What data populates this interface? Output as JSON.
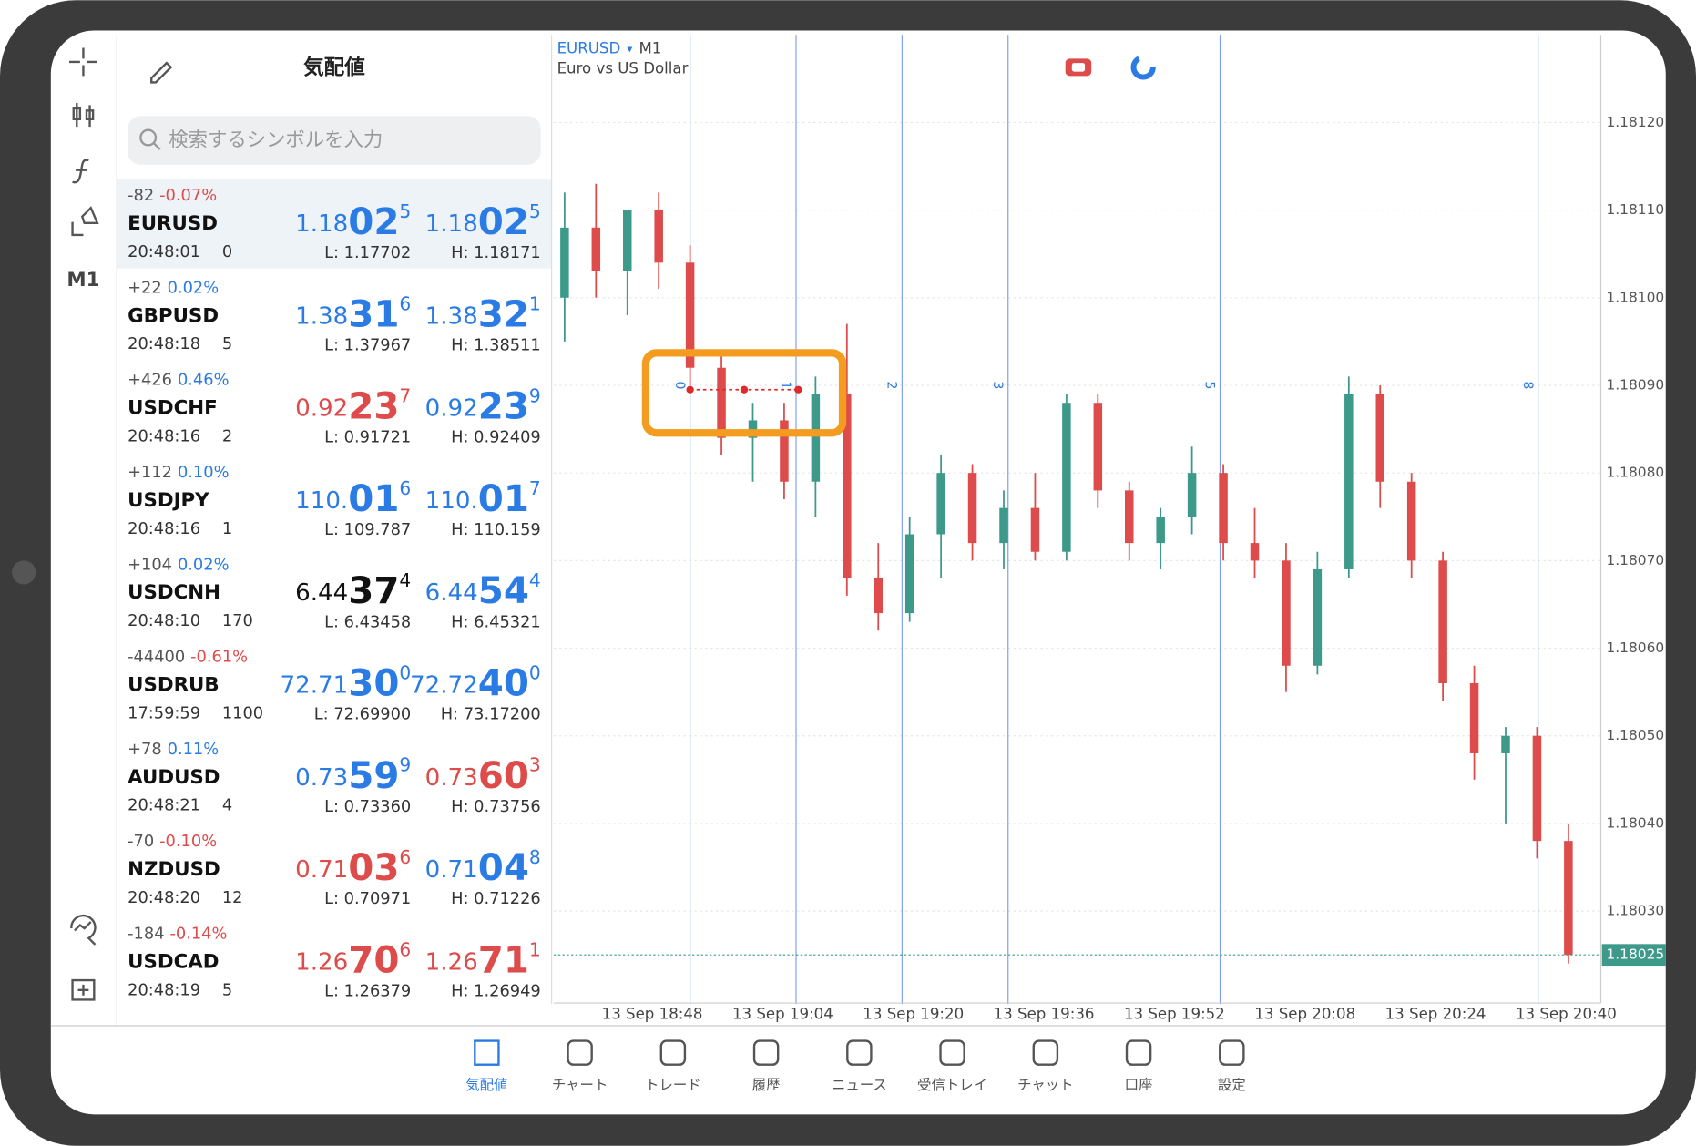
{
  "quotes_panel": {
    "title": "気配値",
    "search_placeholder": "検索するシンボルを入力",
    "rows": [
      {
        "change": "-82",
        "pct": "-0.07%",
        "pct_color": "red",
        "symbol": "EURUSD",
        "time": "20:48:01",
        "spread": "0",
        "bid": [
          "1.18",
          "02",
          "5"
        ],
        "bid_color": "blue",
        "ask": [
          "1.18",
          "02",
          "5"
        ],
        "ask_color": "blue",
        "low": "L: 1.17702",
        "high": "H: 1.18171"
      },
      {
        "change": "+22",
        "pct": "0.02%",
        "pct_color": "blue",
        "symbol": "GBPUSD",
        "time": "20:48:18",
        "spread": "5",
        "bid": [
          "1.38",
          "31",
          "6"
        ],
        "bid_color": "blue",
        "ask": [
          "1.38",
          "32",
          "1"
        ],
        "ask_color": "blue",
        "low": "L: 1.37967",
        "high": "H: 1.38511"
      },
      {
        "change": "+426",
        "pct": "0.46%",
        "pct_color": "blue",
        "symbol": "USDCHF",
        "time": "20:48:16",
        "spread": "2",
        "bid": [
          "0.92",
          "23",
          "7"
        ],
        "bid_color": "red",
        "ask": [
          "0.92",
          "23",
          "9"
        ],
        "ask_color": "blue",
        "low": "L: 0.91721",
        "high": "H: 0.92409"
      },
      {
        "change": "+112",
        "pct": "0.10%",
        "pct_color": "blue",
        "symbol": "USDJPY",
        "time": "20:48:16",
        "spread": "1",
        "bid": [
          "110.",
          "01",
          "6"
        ],
        "bid_color": "blue",
        "ask": [
          "110.",
          "01",
          "7"
        ],
        "ask_color": "blue",
        "low": "L: 109.787",
        "high": "H: 110.159"
      },
      {
        "change": "+104",
        "pct": "0.02%",
        "pct_color": "blue",
        "symbol": "USDCNH",
        "time": "20:48:10",
        "spread": "170",
        "bid": [
          "6.44",
          "37",
          "4"
        ],
        "bid_color": "black",
        "ask": [
          "6.44",
          "54",
          "4"
        ],
        "ask_color": "blue",
        "low": "L: 6.43458",
        "high": "H: 6.45321"
      },
      {
        "change": "-44400",
        "pct": "-0.61%",
        "pct_color": "red",
        "symbol": "USDRUB",
        "time": "17:59:59",
        "spread": "1100",
        "bid": [
          "72.71",
          "30",
          "0"
        ],
        "bid_color": "blue",
        "ask": [
          "72.72",
          "40",
          "0"
        ],
        "ask_color": "blue",
        "low": "L: 72.69900",
        "high": "H: 73.17200"
      },
      {
        "change": "+78",
        "pct": "0.11%",
        "pct_color": "blue",
        "symbol": "AUDUSD",
        "time": "20:48:21",
        "spread": "4",
        "bid": [
          "0.73",
          "59",
          "9"
        ],
        "bid_color": "blue",
        "ask": [
          "0.73",
          "60",
          "3"
        ],
        "ask_color": "red",
        "low": "L: 0.73360",
        "high": "H: 0.73756"
      },
      {
        "change": "-70",
        "pct": "-0.10%",
        "pct_color": "red",
        "symbol": "NZDUSD",
        "time": "20:48:20",
        "spread": "12",
        "bid": [
          "0.71",
          "03",
          "6"
        ],
        "bid_color": "red",
        "ask": [
          "0.71",
          "04",
          "8"
        ],
        "ask_color": "blue",
        "low": "L: 0.70971",
        "high": "H: 0.71226"
      },
      {
        "change": "-184",
        "pct": "-0.14%",
        "pct_color": "red",
        "symbol": "USDCAD",
        "time": "20:48:19",
        "spread": "5",
        "bid": [
          "1.26",
          "70",
          "6"
        ],
        "bid_color": "red",
        "ask": [
          "1.26",
          "71",
          "1"
        ],
        "ask_color": "red",
        "low": "L: 1.26379",
        "high": "H: 1.26949"
      }
    ]
  },
  "toolbar": {
    "timeframe": "M1"
  },
  "chart": {
    "symbol": "EURUSD",
    "timeframe": "M1",
    "description": "Euro vs US Dollar",
    "price_ticks": [
      {
        "value": 1.1812,
        "label": "1.18120"
      },
      {
        "value": 1.1811,
        "label": "1.18110"
      },
      {
        "value": 1.181,
        "label": "1.18100"
      },
      {
        "value": 1.1809,
        "label": "1.18090"
      },
      {
        "value": 1.1808,
        "label": "1.18080"
      },
      {
        "value": 1.1807,
        "label": "1.18070"
      },
      {
        "value": 1.1806,
        "label": "1.18060"
      },
      {
        "value": 1.1805,
        "label": "1.18050"
      },
      {
        "value": 1.1804,
        "label": "1.18040"
      },
      {
        "value": 1.1803,
        "label": "1.18030"
      }
    ],
    "current_price": {
      "value": 1.18025,
      "label": "1.18025"
    },
    "time_labels": [
      "13 Sep 18:48",
      "13 Sep 19:04",
      "13 Sep 19:20",
      "13 Sep 19:36",
      "13 Sep 19:52",
      "13 Sep 20:08",
      "13 Sep 20:24",
      "13 Sep 20:40"
    ],
    "fib_levels": [
      0,
      1,
      2,
      3,
      5,
      8
    ],
    "candles": [
      [
        1.181,
        1.18112,
        1.18095,
        1.18108
      ],
      [
        1.18108,
        1.18113,
        1.181,
        1.18103
      ],
      [
        1.18103,
        1.1811,
        1.18098,
        1.1811
      ],
      [
        1.1811,
        1.18112,
        1.18101,
        1.18104
      ],
      [
        1.18104,
        1.18106,
        1.1809,
        1.18092
      ],
      [
        1.18092,
        1.18094,
        1.18082,
        1.18084
      ],
      [
        1.18084,
        1.18088,
        1.18079,
        1.18086
      ],
      [
        1.18086,
        1.18088,
        1.18077,
        1.18079
      ],
      [
        1.18079,
        1.18091,
        1.18075,
        1.18089
      ],
      [
        1.18089,
        1.18097,
        1.18066,
        1.18068
      ],
      [
        1.18068,
        1.18072,
        1.18062,
        1.18064
      ],
      [
        1.18064,
        1.18075,
        1.18063,
        1.18073
      ],
      [
        1.18073,
        1.18082,
        1.18068,
        1.1808
      ],
      [
        1.1808,
        1.18081,
        1.1807,
        1.18072
      ],
      [
        1.18072,
        1.18078,
        1.18069,
        1.18076
      ],
      [
        1.18076,
        1.1808,
        1.1807,
        1.18071
      ],
      [
        1.18071,
        1.18089,
        1.1807,
        1.18088
      ],
      [
        1.18088,
        1.18089,
        1.18076,
        1.18078
      ],
      [
        1.18078,
        1.18079,
        1.1807,
        1.18072
      ],
      [
        1.18072,
        1.18076,
        1.18069,
        1.18075
      ],
      [
        1.18075,
        1.18083,
        1.18073,
        1.1808
      ],
      [
        1.1808,
        1.18081,
        1.1807,
        1.18072
      ],
      [
        1.18072,
        1.18076,
        1.18068,
        1.1807
      ],
      [
        1.1807,
        1.18072,
        1.18055,
        1.18058
      ],
      [
        1.18058,
        1.18071,
        1.18057,
        1.18069
      ],
      [
        1.18069,
        1.18091,
        1.18068,
        1.18089
      ],
      [
        1.18089,
        1.1809,
        1.18076,
        1.18079
      ],
      [
        1.18079,
        1.1808,
        1.18068,
        1.1807
      ],
      [
        1.1807,
        1.18071,
        1.18054,
        1.18056
      ],
      [
        1.18056,
        1.18058,
        1.18045,
        1.18048
      ],
      [
        1.18048,
        1.18051,
        1.1804,
        1.1805
      ],
      [
        1.1805,
        1.18051,
        1.18036,
        1.18038
      ],
      [
        1.18038,
        1.1804,
        1.18024,
        1.18025
      ]
    ]
  },
  "tabs": [
    {
      "label": "気配値",
      "active": true
    },
    {
      "label": "チャート"
    },
    {
      "label": "トレード"
    },
    {
      "label": "履歴"
    },
    {
      "label": "ニュース"
    },
    {
      "label": "受信トレイ"
    },
    {
      "label": "チャット"
    },
    {
      "label": "口座"
    },
    {
      "label": "設定"
    }
  ]
}
